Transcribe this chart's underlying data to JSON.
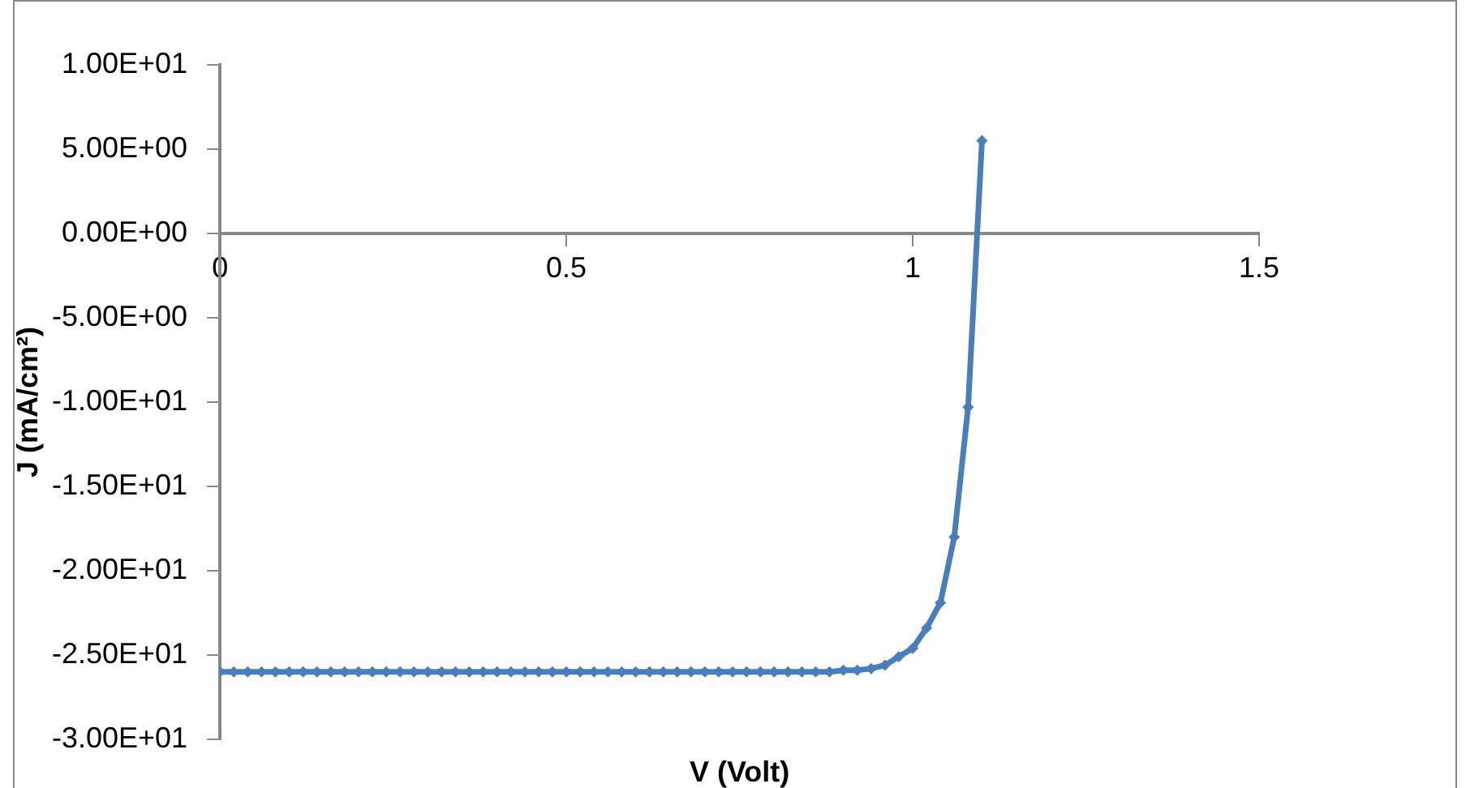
{
  "chart_data": {
    "type": "line",
    "xlabel": "V (Volt)",
    "ylabel": "J (mA/cm²)",
    "x": [
      0,
      0.02,
      0.04,
      0.06,
      0.08,
      0.1,
      0.12,
      0.14,
      0.16,
      0.18,
      0.2,
      0.22,
      0.24,
      0.26,
      0.28,
      0.3,
      0.32,
      0.34,
      0.36,
      0.38,
      0.4,
      0.42,
      0.44,
      0.46,
      0.48,
      0.5,
      0.52,
      0.54,
      0.56,
      0.58,
      0.6,
      0.62,
      0.64,
      0.66,
      0.68,
      0.7,
      0.72,
      0.74,
      0.76,
      0.78,
      0.8,
      0.82,
      0.84,
      0.86,
      0.88,
      0.9,
      0.92,
      0.94,
      0.96,
      0.98,
      1.0,
      1.02,
      1.04,
      1.06,
      1.08,
      1.1
    ],
    "series": [
      {
        "color": "#4a7ebb",
        "values": [
          -26,
          -26,
          -26,
          -26,
          -26,
          -26,
          -26,
          -26,
          -26,
          -26,
          -26,
          -26,
          -26,
          -26,
          -26,
          -26,
          -26,
          -26,
          -26,
          -26,
          -26,
          -26,
          -26,
          -26,
          -26,
          -26,
          -26,
          -26,
          -26,
          -26,
          -26,
          -26,
          -26,
          -26,
          -26,
          -26,
          -26,
          -26,
          -26,
          -26,
          -26,
          -26,
          -26,
          -26,
          -26,
          -25.9,
          -25.9,
          -25.8,
          -25.6,
          -25.1,
          -24.6,
          -23.4,
          -21.9,
          -18.0,
          -10.3,
          5.5
        ]
      }
    ],
    "xlim": [
      0,
      1.5
    ],
    "xticks": [
      0,
      0.5,
      1,
      1.5
    ],
    "ylim": [
      -30,
      10
    ],
    "yticks": [
      {
        "value": -30,
        "label": "-3.00E+01"
      },
      {
        "value": -25,
        "label": "-2.50E+01"
      },
      {
        "value": -20,
        "label": "-2.00E+01"
      },
      {
        "value": -15,
        "label": "-1.50E+01"
      },
      {
        "value": -10,
        "label": "-1.00E+01"
      },
      {
        "value": -5,
        "label": "-5.00E+00"
      },
      {
        "value": 0,
        "label": "0.00E+00"
      },
      {
        "value": 5,
        "label": "5.00E+00"
      },
      {
        "value": 10,
        "label": "1.00E+01"
      }
    ],
    "grid": false,
    "legend": false,
    "marker": "diamond",
    "line_style": "solid"
  }
}
